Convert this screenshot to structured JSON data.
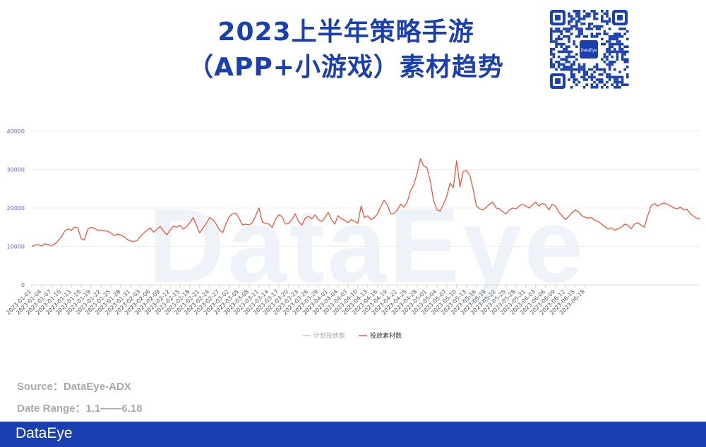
{
  "header": {
    "title_line1": "2023上半年策略手游",
    "title_line2": "（APP+小游戏）素材趋势",
    "qr_label": "DataEye"
  },
  "watermark": "DataEye",
  "footer": {
    "source": "Source：DataEye-ADX",
    "date_range": "Date Range：1.1——6.18",
    "brand": "DataEye"
  },
  "colors": {
    "title": "#1a3fb0",
    "series_line": "#f0553c",
    "legend_plan": "#cccccc",
    "axis_label": "#7b57d6",
    "bar": "#1a3fb0"
  },
  "chart_data": {
    "type": "line",
    "title": "",
    "xlabel": "",
    "ylabel": "",
    "ylim": [
      0,
      40000
    ],
    "yticks": [
      0,
      10000,
      20000,
      30000,
      40000
    ],
    "grid": true,
    "legend_position": "bottom-center",
    "x_start": "2023-01-01",
    "x_end": "2023-06-18",
    "x_tick_step_days": 3,
    "x_tick_labels": [
      "2023-01-01",
      "2023-01-04",
      "2023-01-07",
      "2023-01-10",
      "2023-01-13",
      "2023-01-16",
      "2023-01-19",
      "2023-01-22",
      "2023-01-25",
      "2023-01-28",
      "2023-01-31",
      "2023-02-03",
      "2023-02-06",
      "2023-02-09",
      "2023-02-12",
      "2023-02-15",
      "2023-02-18",
      "2023-02-21",
      "2023-02-24",
      "2023-02-27",
      "2023-03-02",
      "2023-03-05",
      "2023-03-08",
      "2023-03-11",
      "2023-03-14",
      "2023-03-17",
      "2023-03-20",
      "2023-03-23",
      "2023-03-26",
      "2023-03-29",
      "2023-04-01",
      "2023-04-04",
      "2023-04-07",
      "2023-04-10",
      "2023-04-13",
      "2023-04-16",
      "2023-04-19",
      "2023-04-22",
      "2023-04-25",
      "2023-04-28",
      "2023-05-01",
      "2023-05-04",
      "2023-05-07",
      "2023-05-10",
      "2023-05-13",
      "2023-05-16",
      "2023-05-19",
      "2023-05-22",
      "2023-05-25",
      "2023-05-28",
      "2023-05-31",
      "2023-06-03",
      "2023-06-06",
      "2023-06-09",
      "2023-06-12",
      "2023-06-15",
      "2023-06-18"
    ],
    "legend": [
      "计划投放数",
      "投放素材数"
    ],
    "series": [
      {
        "name": "计划投放数",
        "values": []
      },
      {
        "name": "投放素材数",
        "values": [
          10000,
          10300,
          10500,
          10100,
          10700,
          10400,
          10200,
          10600,
          11500,
          12500,
          14000,
          14500,
          14200,
          15000,
          14800,
          12000,
          11700,
          14500,
          15000,
          14700,
          14200,
          14300,
          14000,
          14000,
          13500,
          12800,
          13200,
          13000,
          12500,
          11800,
          11400,
          11300,
          11500,
          12600,
          13500,
          14200,
          14800,
          13700,
          14500,
          15200,
          14000,
          13000,
          14200,
          15300,
          15000,
          15500,
          14500,
          15200,
          16200,
          17500,
          15500,
          13500,
          14800,
          16000,
          17500,
          17000,
          15800,
          14200,
          13600,
          16000,
          17800,
          18500,
          18700,
          17200,
          15600,
          15800,
          15600,
          16200,
          18000,
          20000,
          16300,
          16000,
          15800,
          14900,
          17000,
          18200,
          17800,
          15800,
          16000,
          17000,
          18500,
          16500,
          15500,
          17300,
          17800,
          17200,
          18200,
          17000,
          16500,
          17500,
          18800,
          17000,
          15800,
          18000,
          17200,
          16800,
          16200,
          17000,
          16500,
          16000,
          20500,
          17500,
          18000,
          17000,
          17500,
          18500,
          20500,
          22000,
          20800,
          18500,
          18600,
          19500,
          21000,
          20200,
          21500,
          24500,
          26000,
          29000,
          32800,
          31000,
          30500,
          27000,
          22000,
          19500,
          19200,
          21000,
          23000,
          26500,
          25300,
          32300,
          25500,
          29500,
          29800,
          28500,
          25000,
          20500,
          19800,
          19500,
          20200,
          21000,
          21500,
          20000,
          19800,
          19000,
          18500,
          19500,
          20000,
          19800,
          20500,
          21000,
          20500,
          20000,
          20800,
          21500,
          20500,
          21200,
          20800,
          19500,
          21000,
          20500,
          19000,
          18000,
          17000,
          17800,
          18800,
          19500,
          19000,
          18000,
          17600,
          17400,
          17500,
          16800,
          16500,
          15800,
          15200,
          14500,
          14800,
          14200,
          14600,
          15000,
          15800,
          15500,
          14600,
          15800,
          16200,
          15500,
          15000,
          18000,
          20500,
          21200,
          20500,
          21000,
          21300,
          21000,
          20500,
          20000,
          19800,
          20200,
          19500,
          19600,
          18500,
          17800,
          17300,
          17200
        ]
      }
    ]
  }
}
